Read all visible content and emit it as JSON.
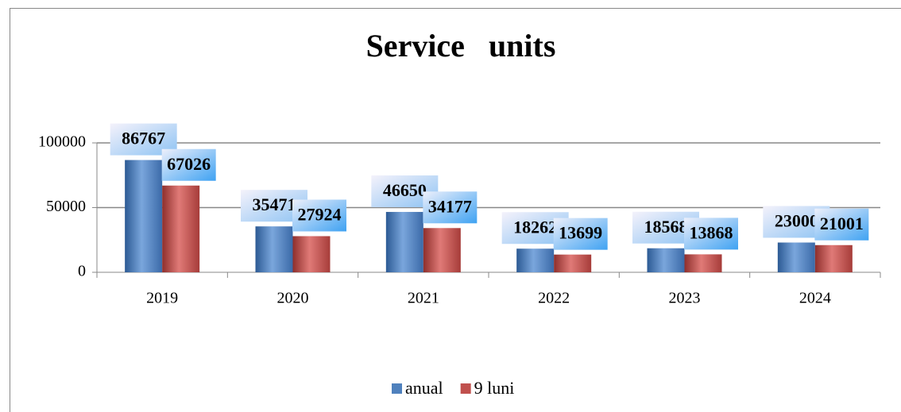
{
  "chart_data": {
    "type": "bar",
    "title": "Service   units",
    "categories": [
      "2019",
      "2020",
      "2021",
      "2022",
      "2023",
      "2024"
    ],
    "series": [
      {
        "name": "anual",
        "color": "#4f81bd",
        "values": [
          86767,
          35471,
          46650,
          18262,
          18568,
          23000
        ]
      },
      {
        "name": "9 luni",
        "color": "#c0504d",
        "values": [
          67026,
          27924,
          34177,
          13699,
          13868,
          21001
        ]
      }
    ],
    "ylim": [
      0,
      100000
    ],
    "yticks": [
      0,
      50000,
      100000
    ],
    "grid": true,
    "legend": "bottom"
  }
}
